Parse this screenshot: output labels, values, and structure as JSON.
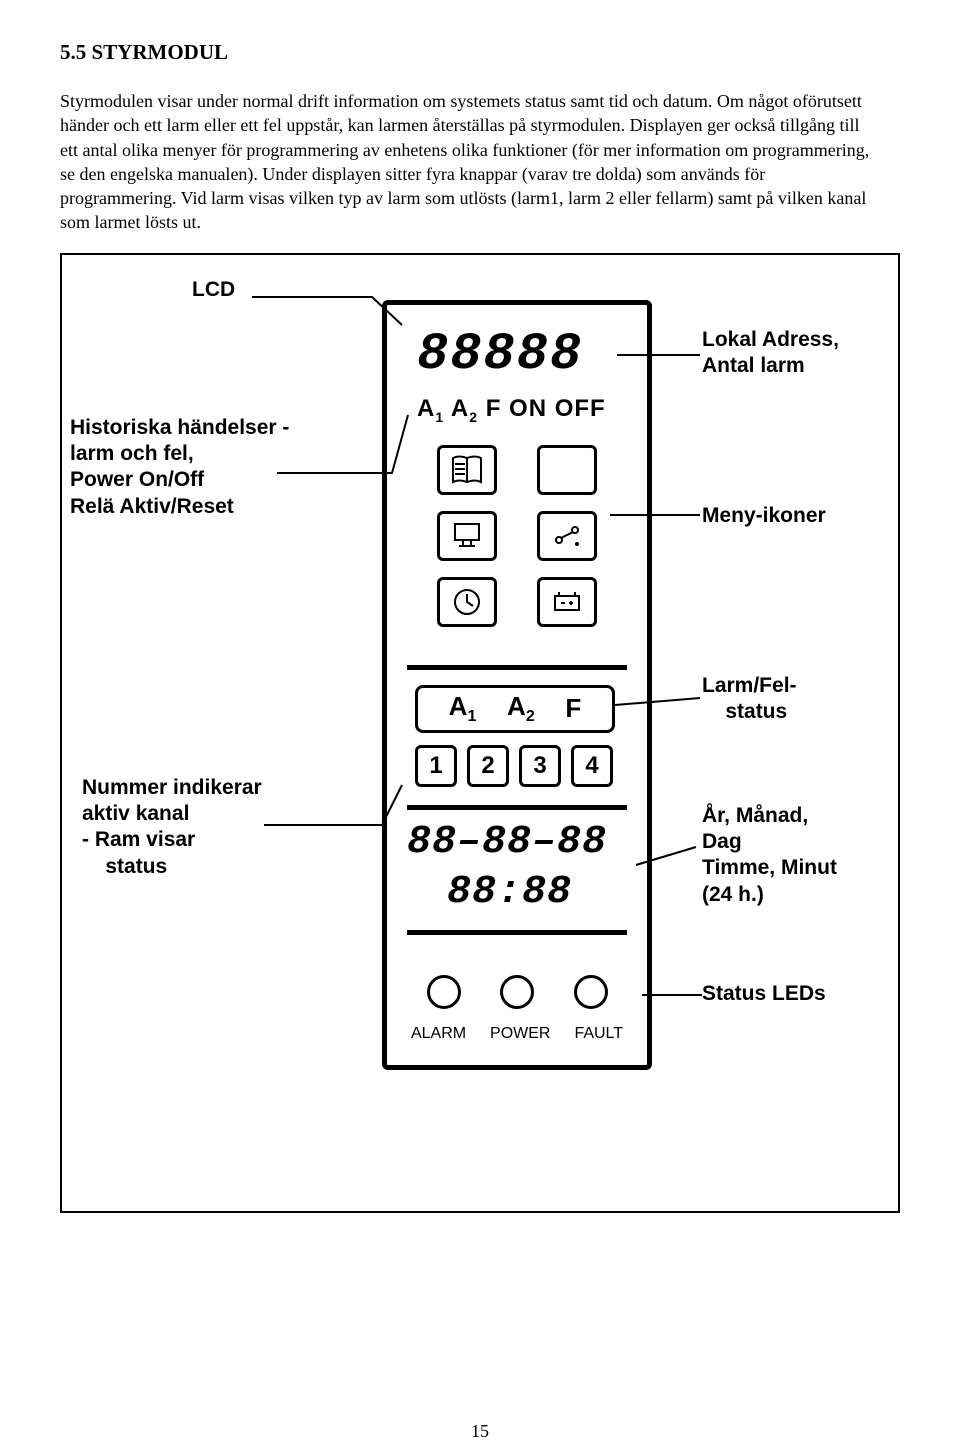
{
  "section": {
    "heading": "5.5 STYRMODUL",
    "paragraph": "Styrmodulen visar under normal drift information om systemets status samt tid och datum. Om något oförutsett händer och ett larm eller ett fel uppstår, kan larmen återställas på styrmodulen. Displayen ger också tillgång till ett antal olika menyer för programmering av enhetens olika funktioner (för mer information om programmering, se den engelska manualen). Under displayen sitter fyra knappar (varav tre dolda) som används för programmering.\nVid larm visas vilken typ av larm som utlösts (larm1, larm 2 eller fellarm) samt på vilken kanal som larmet lösts ut."
  },
  "device": {
    "seg_big": "88888",
    "status_row_html": "A<sub>1</sub> A<sub>2</sub> F ON OFF",
    "alarm_box": [
      "A",
      "1",
      "A",
      "2",
      "F"
    ],
    "num_boxes": [
      "1",
      "2",
      "3",
      "4"
    ],
    "date_seg": "88–88–88",
    "time_seg": "88:88",
    "led_labels": [
      "ALARM",
      "POWER",
      "FAULT"
    ]
  },
  "callouts": {
    "lcd": "LCD",
    "history": "Historiska händelser -\nlarm och fel,\nPower On/Off\nRelä Aktiv/Reset",
    "number": "Nummer indikerar\naktiv kanal\n- Ram visar\n    status",
    "lokal": "Lokal Adress,\nAntal larm",
    "meny": "Meny-ikoner",
    "larmfel": "Larm/Fel-\n    status",
    "armanad": "År, Månad,\nDag\nTimme, Minut\n(24 h.)",
    "statusleds": "Status LEDs"
  },
  "page_number": "15"
}
